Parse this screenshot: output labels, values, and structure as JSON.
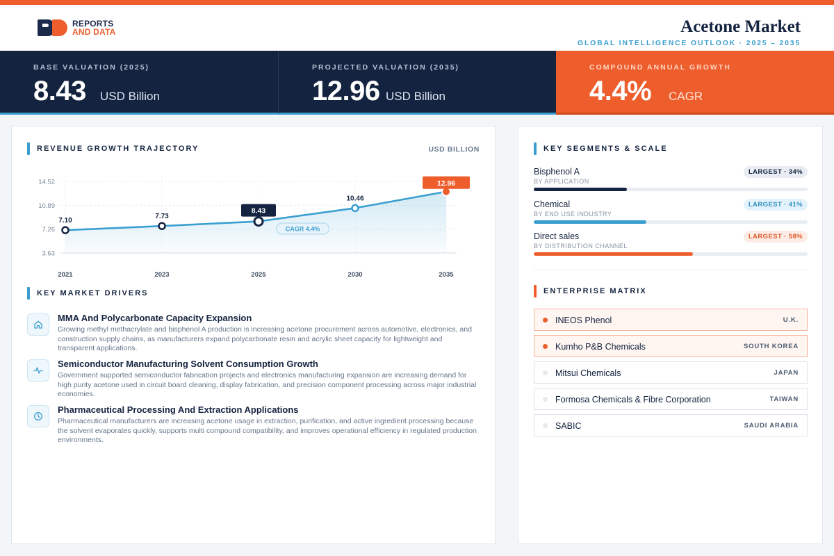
{
  "brand": {
    "line1": "REPORTS",
    "line2": "AND DATA"
  },
  "header": {
    "title": "Acetone Market",
    "subtitle": "GLOBAL INTELLIGENCE OUTLOOK  ·  2025 – 2035"
  },
  "kpis": [
    {
      "label": "BASE VALUATION (2025)",
      "value": "8.43",
      "unit": "USD Billion"
    },
    {
      "label": "PROJECTED VALUATION (2035)",
      "value": "12.96",
      "unit": "USD Billion"
    },
    {
      "label": "COMPOUND ANNUAL GROWTH",
      "value": "4.4%",
      "unit": "CAGR"
    }
  ],
  "trajectory": {
    "title": "REVENUE GROWTH TRAJECTORY",
    "unit": "USD BILLION"
  },
  "chart_data": {
    "type": "area",
    "categories": [
      "2021",
      "2023",
      "2025",
      "2030",
      "2035"
    ],
    "values": [
      7.1,
      7.73,
      8.43,
      10.46,
      12.96
    ],
    "value_labels": [
      "7.10",
      "7.73",
      "8.43",
      "10.46",
      "12.96"
    ],
    "y_ticks": [
      "14.52",
      "10.89",
      "7.26",
      "3.63"
    ],
    "ylim": [
      3.63,
      14.52
    ],
    "annotation": "CAGR 4.4%",
    "highlight_base_index": 2,
    "highlight_end_index": 4,
    "grid": true,
    "colors": {
      "line": "#3a9fd0",
      "base": "#14233f",
      "end": "#ee5d2c"
    }
  },
  "drivers": {
    "title": "KEY MARKET DRIVERS",
    "items": [
      {
        "icon": "home-icon",
        "title": "MMA And Polycarbonate Capacity Expansion",
        "desc": "Growing methyl methacrylate and bisphenol A production is increasing acetone procurement across automotive, electronics, and construction supply chains, as manufacturers expand polycarbonate resin and acrylic sheet capacity for lightweight and transparent applications."
      },
      {
        "icon": "pulse-icon",
        "title": "Semiconductor Manufacturing Solvent Consumption Growth",
        "desc": "Government supported semiconductor fabrication projects and electronics manufacturing expansion are increasing demand for high purity acetone used in circuit board cleaning, display fabrication, and precision component processing across major industrial economies."
      },
      {
        "icon": "clock-icon",
        "title": "Pharmaceutical Processing And Extraction Applications",
        "desc": "Pharmaceutical manufacturers are increasing acetone usage in extraction, purification, and active ingredient processing because the solvent evaporates quickly, supports multi compound compatibility, and improves operational efficiency in regulated production environments."
      }
    ]
  },
  "segments": {
    "title": "KEY SEGMENTS & SCALE",
    "items": [
      {
        "name": "Bisphenol A",
        "sub": "BY APPLICATION",
        "badge": "LARGEST · 34%",
        "share": 34,
        "color": "#14233f",
        "badge_bg": "#e9edf3",
        "badge_fg": "#14233f"
      },
      {
        "name": "Chemical",
        "sub": "BY END USE INDUSTRY",
        "badge": "LARGEST · 41%",
        "share": 41,
        "color": "#3a9fd0",
        "badge_bg": "#e4f3fb",
        "badge_fg": "#2f8fc0"
      },
      {
        "name": "Direct sales",
        "sub": "BY DISTRIBUTION CHANNEL",
        "badge": "LARGEST · 58%",
        "share": 58,
        "color": "#ee5d2c",
        "badge_bg": "#fdece5",
        "badge_fg": "#e0582a"
      }
    ]
  },
  "enterprise": {
    "title": "ENTERPRISE MATRIX",
    "items": [
      {
        "name": "INEOS Phenol",
        "country": "U.K.",
        "highlight": true
      },
      {
        "name": "Kumho P&B Chemicals",
        "country": "SOUTH KOREA",
        "highlight": true
      },
      {
        "name": "Mitsui Chemicals",
        "country": "JAPAN",
        "highlight": false
      },
      {
        "name": "Formosa Chemicals & Fibre Corporation",
        "country": "TAIWAN",
        "highlight": false
      },
      {
        "name": "SABIC",
        "country": "SAUDI ARABIA",
        "highlight": false
      }
    ]
  }
}
